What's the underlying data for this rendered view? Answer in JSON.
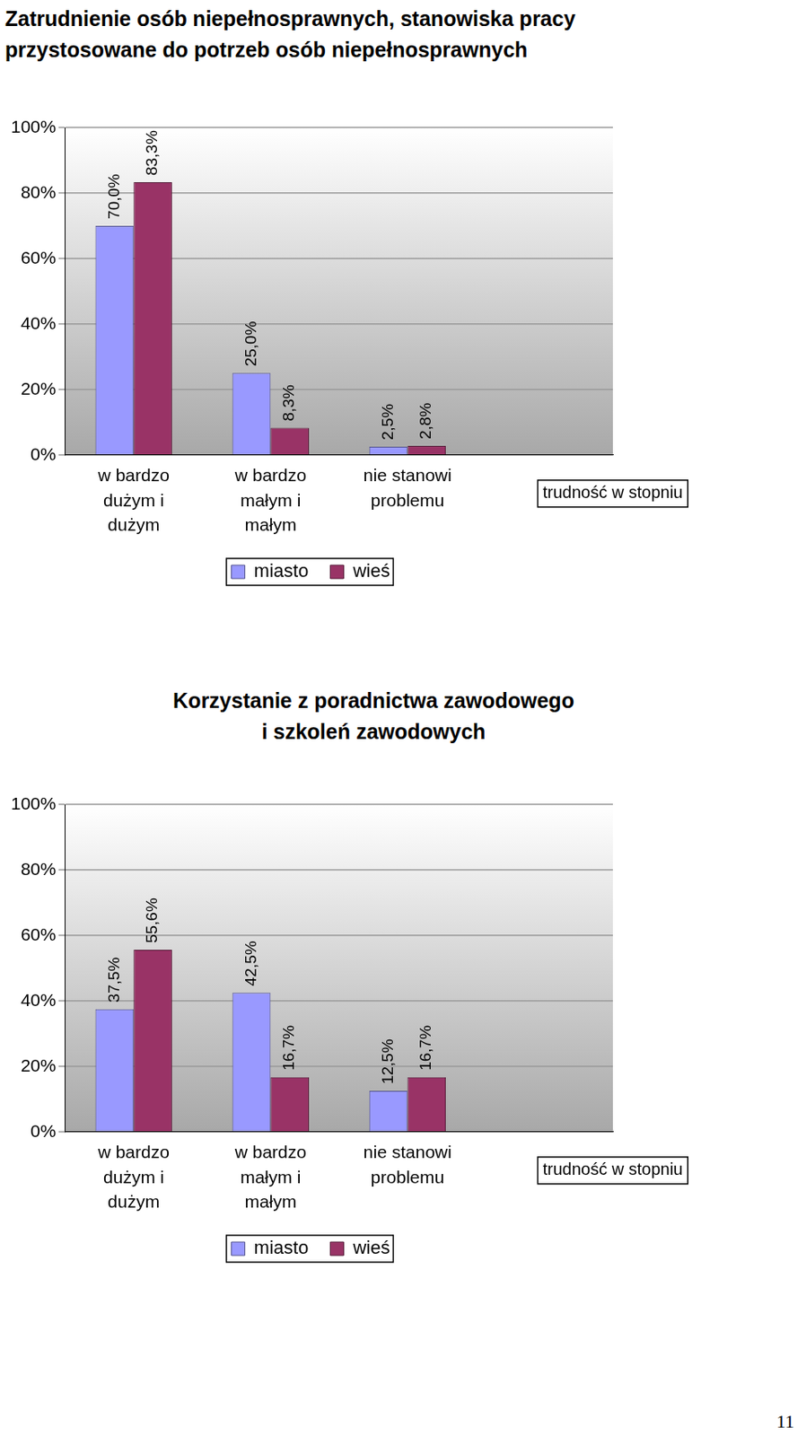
{
  "chart_data": [
    {
      "type": "bar",
      "title": "Zatrudnienie osób niepełnosprawnych, stanowiska pracy\nprzystosowane do potrzeb osób niepełnosprawnych",
      "x_label": "trudność w stopniu",
      "categories": [
        "w bardzo\ndużym i\ndużym",
        "w bardzo\nmałym i\nmałym",
        "nie stanowi\nproblemu",
        null
      ],
      "series": [
        {
          "name": "miasto",
          "color": "#9999ff",
          "values": [
            70.0,
            25.0,
            2.5,
            null
          ],
          "value_labels": [
            "70,0%",
            "25,0%",
            "2,5%",
            null
          ]
        },
        {
          "name": "wieś",
          "color": "#993366",
          "values": [
            83.3,
            8.3,
            2.8,
            null
          ],
          "value_labels": [
            "83,3%",
            "8,3%",
            "2,8%",
            null
          ]
        }
      ],
      "ylim": [
        0,
        100
      ],
      "yticks": [
        {
          "value": 0,
          "label": "0%"
        },
        {
          "value": 20,
          "label": "20%"
        },
        {
          "value": 40,
          "label": "40%"
        },
        {
          "value": 60,
          "label": "60%"
        },
        {
          "value": 80,
          "label": "80%"
        },
        {
          "value": 100,
          "label": "100%"
        }
      ],
      "grid": true,
      "legend": "bottom",
      "data_labels": true
    },
    {
      "type": "bar",
      "title": "Korzystanie z poradnictwa zawodowego\ni szkoleń zawodowych",
      "x_label": "trudność w stopniu",
      "categories": [
        "w bardzo\ndużym i\ndużym",
        "w bardzo\nmałym i\nmałym",
        "nie stanowi\nproblemu",
        null
      ],
      "series": [
        {
          "name": "miasto",
          "color": "#9999ff",
          "values": [
            37.5,
            42.5,
            12.5,
            null
          ],
          "value_labels": [
            "37,5%",
            "42,5%",
            "12,5%",
            null
          ]
        },
        {
          "name": "wieś",
          "color": "#993366",
          "values": [
            55.6,
            16.7,
            16.7,
            null
          ],
          "value_labels": [
            "55,6%",
            "16,7%",
            "16,7%",
            null
          ]
        }
      ],
      "ylim": [
        0,
        100
      ],
      "yticks": [
        {
          "value": 0,
          "label": "0%"
        },
        {
          "value": 20,
          "label": "20%"
        },
        {
          "value": 40,
          "label": "40%"
        },
        {
          "value": 60,
          "label": "60%"
        },
        {
          "value": 80,
          "label": "80%"
        },
        {
          "value": 100,
          "label": "100%"
        }
      ],
      "grid": true,
      "legend": "bottom",
      "data_labels": true
    }
  ],
  "page_number": "11"
}
